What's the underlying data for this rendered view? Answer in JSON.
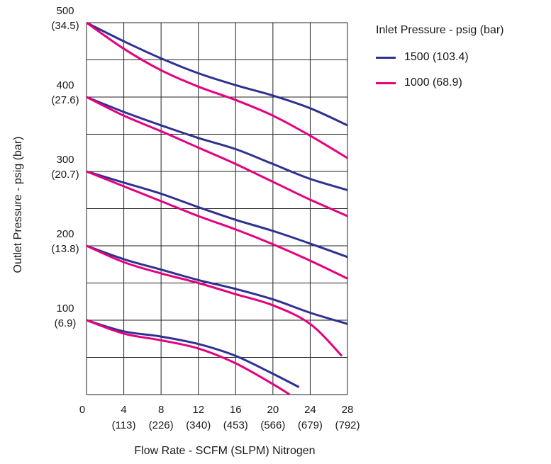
{
  "chart_data": {
    "type": "line",
    "title": "",
    "xlabel": "Flow Rate - SCFM (SLPM) Nitrogen",
    "ylabel": "Outlet Pressure - psig (bar)",
    "xlim": [
      0,
      28
    ],
    "ylim": [
      0,
      500
    ],
    "x_ticks": [
      {
        "value": 0,
        "primary": "0",
        "secondary": ""
      },
      {
        "value": 4,
        "primary": "4",
        "secondary": "(113)"
      },
      {
        "value": 8,
        "primary": "8",
        "secondary": "(226)"
      },
      {
        "value": 12,
        "primary": "12",
        "secondary": "(340)"
      },
      {
        "value": 16,
        "primary": "16",
        "secondary": "(453)"
      },
      {
        "value": 20,
        "primary": "20",
        "secondary": "(566)"
      },
      {
        "value": 24,
        "primary": "24",
        "secondary": "(679)"
      },
      {
        "value": 28,
        "primary": "28",
        "secondary": "(792)"
      }
    ],
    "y_ticks": [
      {
        "value": 100,
        "primary": "100",
        "secondary": "(6.9)"
      },
      {
        "value": 200,
        "primary": "200",
        "secondary": "(13.8)"
      },
      {
        "value": 300,
        "primary": "300",
        "secondary": "(20.7)"
      },
      {
        "value": 400,
        "primary": "400",
        "secondary": "(27.6)"
      },
      {
        "value": 500,
        "primary": "500",
        "secondary": "(34.5)"
      }
    ],
    "grid": true,
    "legend": {
      "title": "Inlet Pressure - psig (bar)",
      "placement": "top-right"
    },
    "series": [
      {
        "name": "1500 (103.4)",
        "color": "#2e3192",
        "curves": [
          [
            [
              0,
              500
            ],
            [
              4,
              475
            ],
            [
              8,
              452
            ],
            [
              12,
              432
            ],
            [
              16,
              416
            ],
            [
              20,
              402
            ],
            [
              24,
              385
            ],
            [
              28,
              362
            ]
          ],
          [
            [
              0,
              400
            ],
            [
              4,
              380
            ],
            [
              8,
              362
            ],
            [
              12,
              345
            ],
            [
              16,
              330
            ],
            [
              20,
              310
            ],
            [
              24,
              290
            ],
            [
              28,
              275
            ]
          ],
          [
            [
              0,
              300
            ],
            [
              4,
              285
            ],
            [
              8,
              270
            ],
            [
              12,
              252
            ],
            [
              16,
              235
            ],
            [
              20,
              220
            ],
            [
              24,
              203
            ],
            [
              28,
              185
            ]
          ],
          [
            [
              0,
              200
            ],
            [
              4,
              182
            ],
            [
              8,
              168
            ],
            [
              12,
              154
            ],
            [
              16,
              142
            ],
            [
              20,
              128
            ],
            [
              24,
              110
            ],
            [
              28,
              95
            ]
          ],
          [
            [
              0,
              100
            ],
            [
              4,
              85
            ],
            [
              8,
              78
            ],
            [
              12,
              68
            ],
            [
              16,
              52
            ],
            [
              20,
              28
            ],
            [
              22.8,
              10
            ]
          ]
        ]
      },
      {
        "name": "1000 (68.9)",
        "color": "#e6007e",
        "curves": [
          [
            [
              0,
              500
            ],
            [
              4,
              465
            ],
            [
              8,
              436
            ],
            [
              12,
              414
            ],
            [
              16,
              396
            ],
            [
              20,
              375
            ],
            [
              24,
              348
            ],
            [
              28,
              318
            ]
          ],
          [
            [
              0,
              400
            ],
            [
              4,
              375
            ],
            [
              8,
              354
            ],
            [
              12,
              332
            ],
            [
              16,
              310
            ],
            [
              20,
              286
            ],
            [
              24,
              262
            ],
            [
              28,
              240
            ]
          ],
          [
            [
              0,
              300
            ],
            [
              4,
              280
            ],
            [
              8,
              260
            ],
            [
              12,
              240
            ],
            [
              16,
              222
            ],
            [
              20,
              202
            ],
            [
              24,
              180
            ],
            [
              28,
              156
            ]
          ],
          [
            [
              0,
              200
            ],
            [
              4,
              178
            ],
            [
              8,
              163
            ],
            [
              12,
              150
            ],
            [
              16,
              135
            ],
            [
              20,
              120
            ],
            [
              24,
              95
            ],
            [
              27.4,
              52
            ]
          ],
          [
            [
              0,
              100
            ],
            [
              4,
              82
            ],
            [
              8,
              73
            ],
            [
              12,
              62
            ],
            [
              16,
              42
            ],
            [
              20,
              14
            ],
            [
              21.8,
              0
            ]
          ]
        ]
      }
    ]
  }
}
